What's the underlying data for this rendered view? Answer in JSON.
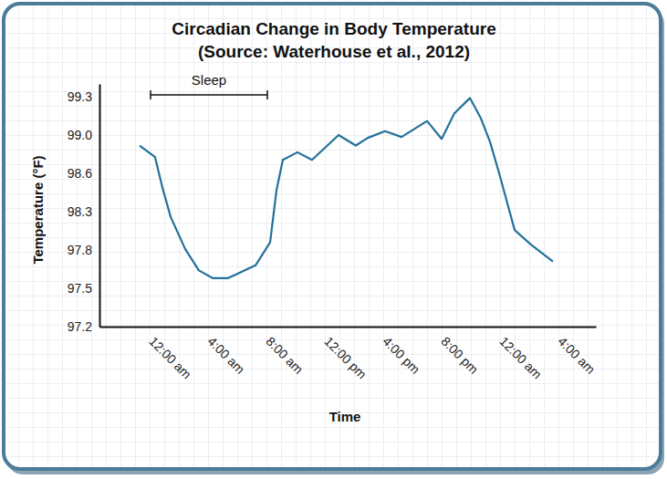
{
  "chart_data": {
    "type": "line",
    "title": "Circadian Change in Body Temperature",
    "subtitle": "(Source: Waterhouse et al., 2012)",
    "x_label": "Time",
    "y_label": "Temperature (°F)",
    "x": [
      -0.75,
      0.31,
      0.81,
      1.38,
      2.38,
      3.31,
      4.25,
      5.31,
      7.19,
      8.19,
      8.63,
      9.06,
      10.06,
      11.06,
      12.88,
      14.06,
      14.88,
      16.06,
      17.19,
      18.94,
      19.94,
      20.81,
      21.88,
      22.63,
      23.25,
      23.88,
      24.94,
      26.06,
      27.56
    ],
    "values": [
      98.89,
      98.77,
      98.49,
      98.23,
      97.81,
      97.64,
      97.58,
      97.58,
      97.68,
      97.9,
      98.47,
      98.74,
      98.82,
      98.74,
      99.0,
      98.89,
      98.97,
      99.03,
      98.98,
      99.11,
      98.96,
      99.17,
      99.29,
      99.13,
      98.93,
      98.6,
      98.06,
      97.87,
      97.71
    ],
    "color": "#23719a",
    "xlim": [
      -3.5,
      30.5
    ],
    "xticks": [
      {
        "value": 0,
        "label": "12:00 am"
      },
      {
        "value": 4,
        "label": "4:00 am"
      },
      {
        "value": 8,
        "label": "8:00 am"
      },
      {
        "value": 12,
        "label": "12:00 pm"
      },
      {
        "value": 16,
        "label": "4:00 pm"
      },
      {
        "value": 20,
        "label": "8:00 pm"
      },
      {
        "value": 24,
        "label": "12:00 am"
      },
      {
        "value": 28,
        "label": "4:00 am"
      }
    ],
    "ylim": [
      97.2,
      99.4
    ],
    "yticks": [
      97.2,
      97.5,
      97.8,
      98.3,
      98.6,
      {
        "value": 99,
        "label": "99.0"
      },
      99.3
    ],
    "annotations": [
      {
        "text": "Sleep",
        "x": [
          0,
          8
        ]
      }
    ]
  }
}
